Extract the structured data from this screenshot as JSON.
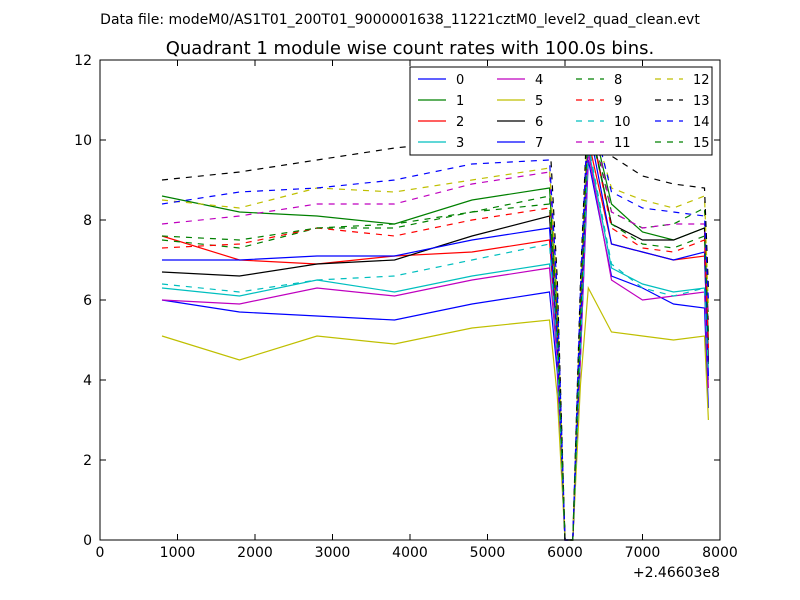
{
  "chart_data": {
    "type": "line",
    "suptitle": "Data file: modeM0/AS1T01_200T01_9000001638_11221cztM0_level2_quad_clean.evt",
    "title": "Quadrant 1 module wise count rates with 100.0s bins.",
    "xlabel": "",
    "ylabel": "",
    "xlim": [
      0,
      8000
    ],
    "ylim": [
      0,
      12
    ],
    "x_offset_label": "+2.46603e8",
    "xticks": [
      0,
      1000,
      2000,
      3000,
      4000,
      5000,
      6000,
      7000,
      8000
    ],
    "yticks": [
      0,
      2,
      4,
      6,
      8,
      10,
      12
    ],
    "grid": false,
    "legend": {
      "location": "top-right",
      "columns": 4
    },
    "x": [
      800,
      1800,
      2800,
      3800,
      4800,
      5800,
      5900,
      6000,
      6100,
      6200,
      6300,
      6600,
      7000,
      7400,
      7800,
      7850
    ],
    "series": [
      {
        "name": "0",
        "color": "#0000ff",
        "dash": "solid",
        "values": [
          6.0,
          5.7,
          5.6,
          5.5,
          5.9,
          6.2,
          4.2,
          0,
          0,
          4.6,
          9.5,
          6.6,
          6.3,
          5.9,
          5.8,
          3.3
        ]
      },
      {
        "name": "1",
        "color": "#008000",
        "dash": "solid",
        "values": [
          8.6,
          8.2,
          8.1,
          7.9,
          8.5,
          8.8,
          5.6,
          0,
          0,
          5.6,
          10.9,
          8.4,
          7.7,
          7.5,
          7.8,
          5.0
        ]
      },
      {
        "name": "2",
        "color": "#ff0000",
        "dash": "solid",
        "values": [
          7.6,
          7.0,
          6.9,
          7.1,
          7.2,
          7.5,
          4.8,
          0,
          0,
          5.0,
          10.0,
          7.4,
          7.2,
          7.0,
          7.1,
          4.5
        ]
      },
      {
        "name": "3",
        "color": "#00bfbf",
        "dash": "solid",
        "values": [
          6.3,
          6.1,
          6.5,
          6.2,
          6.6,
          6.9,
          4.6,
          0,
          0,
          4.8,
          9.8,
          6.8,
          6.4,
          6.2,
          6.3,
          4.0
        ]
      },
      {
        "name": "4",
        "color": "#bf00bf",
        "dash": "solid",
        "values": [
          6.0,
          5.9,
          6.3,
          6.1,
          6.5,
          6.8,
          4.5,
          0,
          0,
          4.6,
          9.7,
          6.5,
          6.0,
          6.1,
          6.2,
          3.8
        ]
      },
      {
        "name": "5",
        "color": "#bfbf00",
        "dash": "solid",
        "values": [
          5.1,
          4.5,
          5.1,
          4.9,
          5.3,
          5.5,
          3.6,
          0,
          0,
          3.9,
          6.3,
          5.2,
          5.1,
          5.0,
          5.1,
          3.0
        ]
      },
      {
        "name": "6",
        "color": "#000000",
        "dash": "solid",
        "values": [
          6.7,
          6.6,
          6.9,
          7.0,
          7.6,
          8.1,
          5.0,
          0,
          0,
          5.2,
          10.6,
          7.9,
          7.5,
          7.5,
          7.8,
          4.4
        ]
      },
      {
        "name": "7",
        "color": "#0000ff",
        "dash": "solid",
        "values": [
          7.0,
          7.0,
          7.1,
          7.1,
          7.5,
          7.8,
          5.0,
          0,
          0,
          5.2,
          10.4,
          7.4,
          7.2,
          7.0,
          7.2,
          4.1
        ]
      },
      {
        "name": "8",
        "color": "#008000",
        "dash": "dashed",
        "values": [
          7.5,
          7.3,
          7.8,
          7.8,
          8.2,
          8.6,
          5.5,
          0,
          0,
          5.6,
          10.7,
          8.2,
          7.8,
          7.9,
          8.3,
          5.5
        ]
      },
      {
        "name": "9",
        "color": "#ff0000",
        "dash": "dashed",
        "values": [
          7.3,
          7.4,
          7.8,
          7.6,
          8.0,
          8.3,
          5.2,
          0,
          0,
          5.5,
          10.6,
          7.8,
          7.3,
          7.2,
          7.5,
          4.8
        ]
      },
      {
        "name": "10",
        "color": "#00bfbf",
        "dash": "dashed",
        "values": [
          6.4,
          6.2,
          6.5,
          6.6,
          7.0,
          7.4,
          4.7,
          0,
          0,
          4.8,
          9.9,
          6.9,
          6.3,
          6.1,
          6.3,
          4.2
        ]
      },
      {
        "name": "11",
        "color": "#bf00bf",
        "dash": "dashed",
        "values": [
          7.9,
          8.1,
          8.4,
          8.4,
          8.9,
          9.2,
          6.0,
          0,
          0,
          6.0,
          11.0,
          8.2,
          7.8,
          7.9,
          7.9,
          5.5
        ]
      },
      {
        "name": "12",
        "color": "#bfbf00",
        "dash": "dashed",
        "values": [
          8.5,
          8.3,
          8.8,
          8.7,
          9.0,
          9.3,
          6.0,
          0,
          0,
          6.1,
          10.8,
          8.8,
          8.5,
          8.3,
          8.6,
          5.8
        ]
      },
      {
        "name": "13",
        "color": "#000000",
        "dash": "dashed",
        "values": [
          9.0,
          9.2,
          9.5,
          9.8,
          10.0,
          10.2,
          6.5,
          0,
          0,
          6.5,
          11.3,
          9.6,
          9.1,
          8.9,
          8.8,
          6.3
        ]
      },
      {
        "name": "14",
        "color": "#0000ff",
        "dash": "dashed",
        "values": [
          8.4,
          8.7,
          8.8,
          9.0,
          9.4,
          9.5,
          6.2,
          0,
          0,
          6.3,
          11.0,
          8.7,
          8.3,
          8.2,
          8.1,
          6.0
        ]
      },
      {
        "name": "15",
        "color": "#008000",
        "dash": "dashed",
        "values": [
          7.6,
          7.5,
          7.8,
          7.9,
          8.2,
          8.4,
          5.3,
          0,
          0,
          5.5,
          10.5,
          7.9,
          7.4,
          7.3,
          7.6,
          5.2
        ]
      }
    ]
  }
}
